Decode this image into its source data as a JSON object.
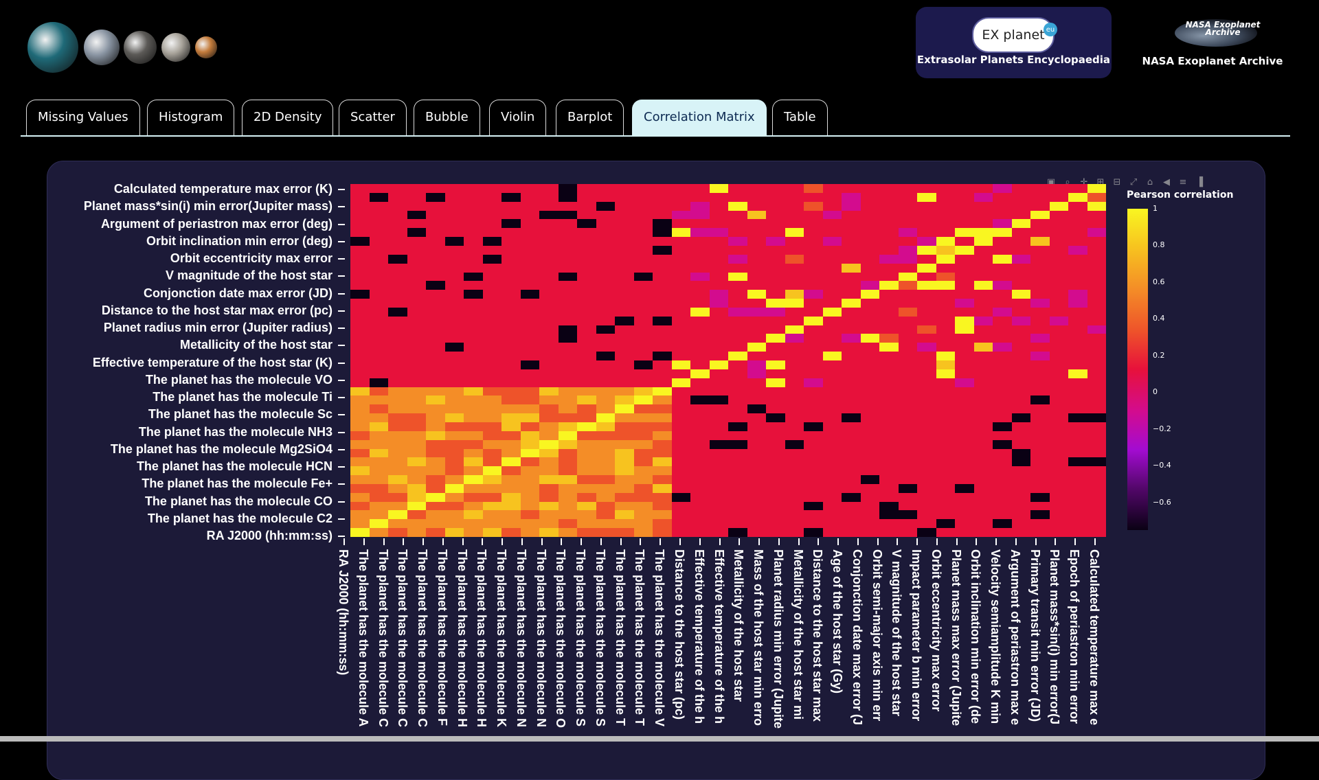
{
  "brand": {
    "encyclopedia_logo_text": "EX planet",
    "encyclopedia_logo_badge": "eu",
    "encyclopedia_caption": "Extrasolar Planets Encyclopaedia",
    "nasa_logo_text": "NASA Exoplanet Archive",
    "nasa_caption": "NASA Exoplanet Archive"
  },
  "planets": [
    {
      "name": "planet-teal-icon",
      "color": "#1f6a78"
    },
    {
      "name": "planet-grey-icon",
      "color": "#8a95a3"
    },
    {
      "name": "planet-dark-icon",
      "color": "#5c5a57"
    },
    {
      "name": "planet-rocky-icon",
      "color": "#a8a39a"
    },
    {
      "name": "planet-orange-icon",
      "color": "#c47c3c"
    }
  ],
  "tabs": [
    {
      "label": "Missing Values"
    },
    {
      "label": "Histogram"
    },
    {
      "label": "2D Density"
    },
    {
      "label": "Scatter"
    },
    {
      "label": "Bubble"
    },
    {
      "label": "Violin"
    },
    {
      "label": "Barplot"
    },
    {
      "label": "Correlation Matrix",
      "active": true
    },
    {
      "label": "Table"
    }
  ],
  "modebar_icons": [
    "camera-icon",
    "zoom-icon",
    "pan-icon",
    "zoom-in-icon",
    "zoom-out-icon",
    "autoscale-icon",
    "home-icon",
    "spike-lines-icon",
    "hover-compare-icon",
    "plotly-logo-icon"
  ],
  "chart_data": {
    "type": "heatmap",
    "title": "",
    "colorbar_title": "Pearson correlation",
    "colorbar_ticks": [
      "1",
      "0.8",
      "0.6",
      "0.4",
      "0.2",
      "0",
      "−0.2",
      "−0.4",
      "−0.6"
    ],
    "colorscale": [
      "#0d0221",
      "#6a00a8",
      "#b12a90",
      "#e16462",
      "#fca636",
      "#f0f921"
    ],
    "zrange": [
      -0.75,
      1
    ],
    "ytick_labels": [
      "Calculated temperature max error (K)",
      "Planet mass*sin(i) min error(Jupiter mass)",
      "Argument of periastron max error (deg)",
      "Orbit inclination min error (deg)",
      "Orbit eccentricity max error",
      "V magnitude of the host star",
      "Conjonction date max error (JD)",
      "Distance to the host star max error (pc)",
      "Planet radius min error (Jupiter radius)",
      "Metallicity of the host star",
      "Effective temperature of the host star (K)",
      "The planet has the molecule VO",
      "The planet has the molecule Ti",
      "The planet has the molecule Sc",
      "The planet has the molecule NH3",
      "The planet has the molecule Mg2SiO4",
      "The planet has the molecule HCN",
      "The planet has the molecule Fe+",
      "The planet has the molecule CO",
      "The planet has the molecule C2",
      "RA J2000 (hh:mm:ss)"
    ],
    "xtick_labels": [
      "RA J2000 (hh:mm:ss)",
      "The planet has the molecule A",
      "The planet has the molecule C",
      "The planet has the molecule C",
      "The planet has the molecule C",
      "The planet has the molecule F",
      "The planet has the molecule H",
      "The planet has the molecule H",
      "The planet has the molecule K",
      "The planet has the molecule N",
      "The planet has the molecule N",
      "The planet has the molecule O",
      "The planet has the molecule S",
      "The planet has the molecule S",
      "The planet has the molecule T",
      "The planet has the molecule T",
      "The planet has the molecule V",
      "Distance to the host star (pc)",
      "Effective temperature of the h",
      "Effective temperature of the h",
      "Metallicity of the host star",
      "Mass of the host star min erro",
      "Planet radius min error (Jupite",
      "Metallicity of the host star mi",
      "Distance to the host star max",
      "Age of the host star (Gy)",
      "Conjonction date max error (J",
      "Orbit semi-major axis min err",
      "V magnitude of the host star",
      "Impact parameter b min error",
      "Orbit eccentricity max error",
      "Planet mass max error (Jupite",
      "Orbit inclination min error (de",
      "Velocity semiamplitude K min",
      "Argument of periastron max e",
      "Primary transit min error (JD)",
      "Planet mass*sin(i) min error(J",
      "Epoch of periastron min error",
      "Calculated temperature max e"
    ]
  }
}
